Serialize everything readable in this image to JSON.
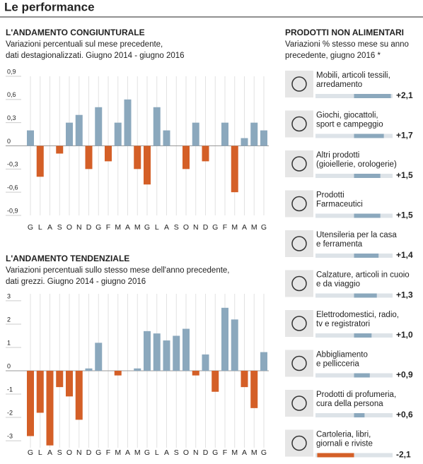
{
  "title": "Le performance",
  "chart_data": [
    {
      "type": "bar",
      "title": "L'ANDAMENTO CONGIUNTURALE",
      "subtitle": [
        "Variazioni percentuali sul mese precedente,",
        "dati destagionalizzati. Giugno 2014 - giugno 2016"
      ],
      "categories": [
        "G",
        "L",
        "A",
        "S",
        "O",
        "N",
        "D",
        "G",
        "F",
        "M",
        "A",
        "M",
        "G",
        "L",
        "A",
        "S",
        "O",
        "N",
        "D",
        "G",
        "F",
        "M",
        "A",
        "M",
        "G"
      ],
      "values": [
        0.2,
        -0.4,
        0,
        -0.1,
        0.3,
        0.4,
        -0.3,
        0.5,
        -0.2,
        0.3,
        0.6,
        -0.3,
        -0.5,
        0.5,
        0.2,
        0,
        -0.3,
        0.3,
        -0.2,
        0,
        0.3,
        -0.6,
        0.1,
        0.3,
        0.2
      ],
      "colors": {
        "positive": "#8ba8bd",
        "negative": "#d45f27"
      },
      "ylim": [
        -0.9,
        0.9
      ],
      "yticks": [
        {
          "value": 0.9,
          "label": "0,9"
        },
        {
          "value": 0.6,
          "label": "0,6"
        },
        {
          "value": 0.3,
          "label": "0,3"
        },
        0,
        {
          "value": -0.3,
          "label": "-0,3"
        },
        {
          "value": -0.6,
          "label": "-0,6"
        },
        {
          "value": -0.9,
          "label": "-0,9"
        }
      ]
    },
    {
      "type": "bar",
      "title": "L'ANDAMENTO TENDENZIALE",
      "subtitle": [
        "Variazioni percentuali sullo stesso mese dell'anno precedente,",
        "dati grezzi. Giugno 2014 - giugno 2016"
      ],
      "categories": [
        "G",
        "L",
        "A",
        "S",
        "O",
        "N",
        "D",
        "G",
        "F",
        "M",
        "A",
        "M",
        "G",
        "L",
        "A",
        "S",
        "O",
        "N",
        "D",
        "G",
        "F",
        "M",
        "A",
        "M",
        "G"
      ],
      "values": [
        -2.8,
        -1.8,
        -3.2,
        -0.7,
        -1.1,
        -2.1,
        0.1,
        1.2,
        0,
        -0.2,
        0,
        0.1,
        1.7,
        1.6,
        1.3,
        1.5,
        1.8,
        -0.2,
        0.7,
        -0.9,
        2.7,
        2.2,
        -0.7,
        -1.6,
        0.8
      ],
      "colors": {
        "positive": "#8ba8bd",
        "negative": "#d45f27"
      },
      "ylim": [
        -3.3,
        3.3
      ],
      "yticks": [
        3,
        2,
        1,
        0,
        -1,
        -2,
        -3
      ]
    },
    {
      "type": "hbar",
      "title": "PRODOTTI NON ALIMENTARI",
      "subtitle": [
        "Variazioni % stesso mese su anno",
        "precedente, giugno 2016 *"
      ],
      "categories": [
        [
          "Mobili, articoli tessili,",
          "arredamento"
        ],
        [
          "Giochi, giocattoli,",
          "sport e campeggio"
        ],
        [
          "Altri prodotti",
          "(gioiellerie, orologerie)"
        ],
        [
          "Prodotti",
          "Farmaceutici"
        ],
        [
          "Utensileria per la casa",
          "e ferramenta"
        ],
        [
          "Calzature, articoli in cuoio",
          "e da viaggio"
        ],
        [
          "Elettrodomestici, radio,",
          "tv e registratori"
        ],
        [
          "Abbigliamento",
          "e pellicceria"
        ],
        [
          "Prodotti di profumeria,",
          "cura della persona"
        ],
        [
          "Cartoleria, libri,",
          "giornali e riviste"
        ]
      ],
      "values": [
        2.1,
        1.7,
        1.5,
        1.5,
        1.4,
        1.3,
        1.0,
        0.9,
        0.6,
        -2.1
      ],
      "value_labels": [
        "+2,1",
        "+1,7",
        "+1,5",
        "+1,5",
        "+1,4",
        "+1,3",
        "+1,0",
        "+0,9",
        "+0,6",
        "-2,1"
      ],
      "colors": {
        "positive": "#8ba8bd",
        "negative": "#d45f27",
        "track": "#dde3e8"
      },
      "xlim": [
        -2.2,
        2.2
      ]
    }
  ]
}
